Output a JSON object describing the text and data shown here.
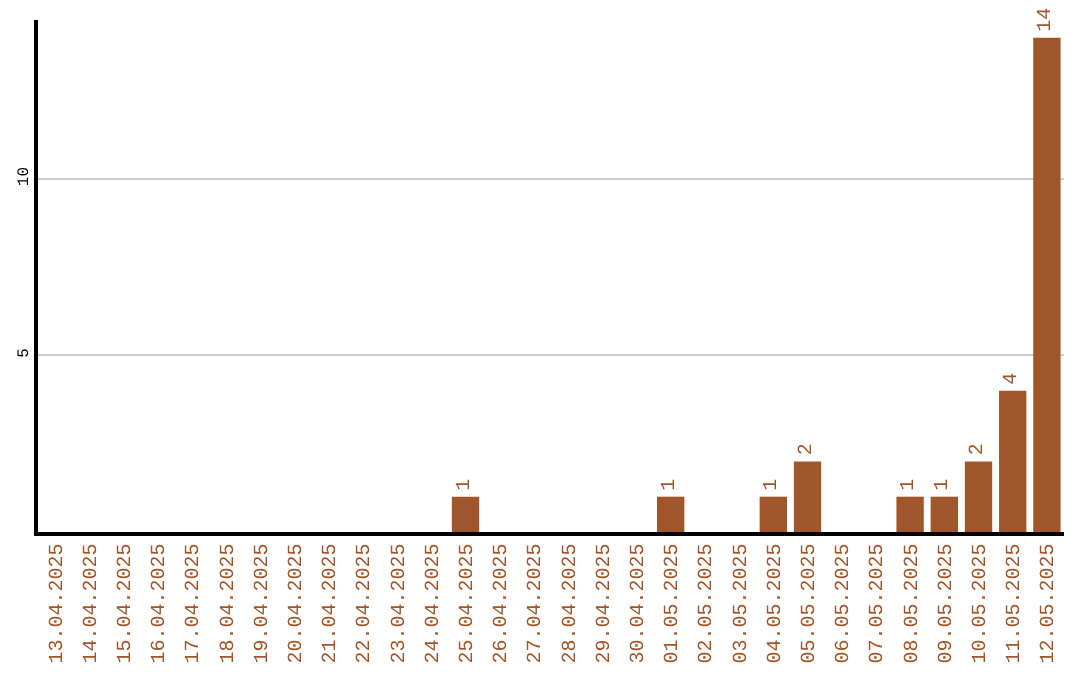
{
  "chart_data": {
    "type": "bar",
    "categories": [
      "13.04.2025",
      "14.04.2025",
      "15.04.2025",
      "16.04.2025",
      "17.04.2025",
      "18.04.2025",
      "19.04.2025",
      "20.04.2025",
      "21.04.2025",
      "22.04.2025",
      "23.04.2025",
      "24.04.2025",
      "25.04.2025",
      "26.04.2025",
      "27.04.2025",
      "28.04.2025",
      "29.04.2025",
      "30.04.2025",
      "01.05.2025",
      "02.05.2025",
      "03.05.2025",
      "04.05.2025",
      "05.05.2025",
      "06.05.2025",
      "07.05.2025",
      "08.05.2025",
      "09.05.2025",
      "10.05.2025",
      "11.05.2025",
      "12.05.2025"
    ],
    "values": [
      0,
      0,
      0,
      0,
      0,
      0,
      0,
      0,
      0,
      0,
      0,
      0,
      1,
      0,
      0,
      0,
      0,
      0,
      1,
      0,
      0,
      1,
      2,
      0,
      0,
      1,
      1,
      2,
      4,
      14
    ],
    "value_labels": [
      null,
      null,
      null,
      null,
      null,
      null,
      null,
      null,
      null,
      null,
      null,
      null,
      "1",
      null,
      null,
      null,
      null,
      null,
      "1",
      null,
      null,
      "1",
      "2",
      null,
      null,
      "1",
      "1",
      "2",
      "4",
      "14"
    ],
    "color": "#a0562a",
    "ylim": [
      0,
      14.5
    ],
    "yticks": [
      5,
      10
    ],
    "grid": "y",
    "legend": false
  }
}
